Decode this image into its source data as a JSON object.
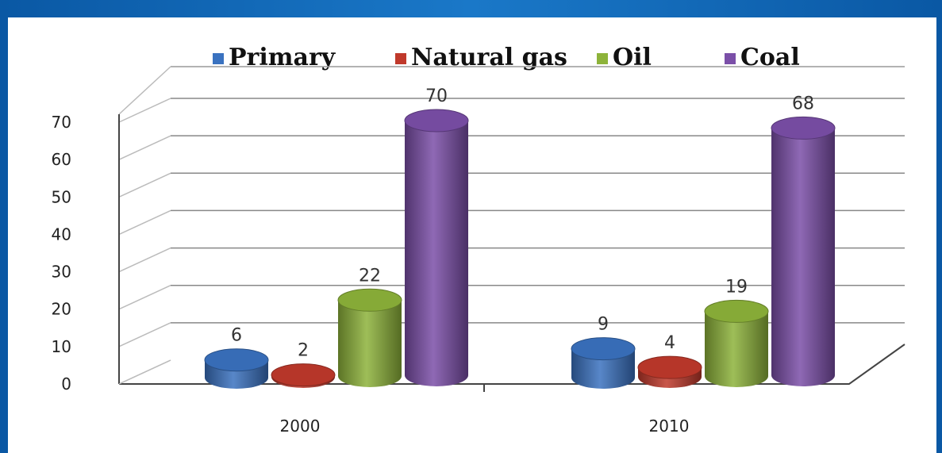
{
  "chart_data": {
    "type": "bar",
    "categories": [
      "2000",
      "2010"
    ],
    "series": [
      {
        "name": "Primary",
        "values": [
          6,
          9
        ],
        "color": "#3a72c0"
      },
      {
        "name": "Natural gas",
        "values": [
          2,
          4
        ],
        "color": "#c0392b"
      },
      {
        "name": "Oil",
        "values": [
          22,
          19
        ],
        "color": "#8db33a"
      },
      {
        "name": "Coal",
        "values": [
          70,
          68
        ],
        "color": "#7b4fa8"
      }
    ],
    "ylim": [
      0,
      70
    ],
    "yticks": [
      "0",
      "10",
      "20",
      "30",
      "40",
      "50",
      "60",
      "70"
    ],
    "legend_position": "top",
    "grid": true,
    "style": "3d-cylinder"
  },
  "colors": {
    "frame": "#0d5fa8",
    "panel": "#ffffff"
  }
}
